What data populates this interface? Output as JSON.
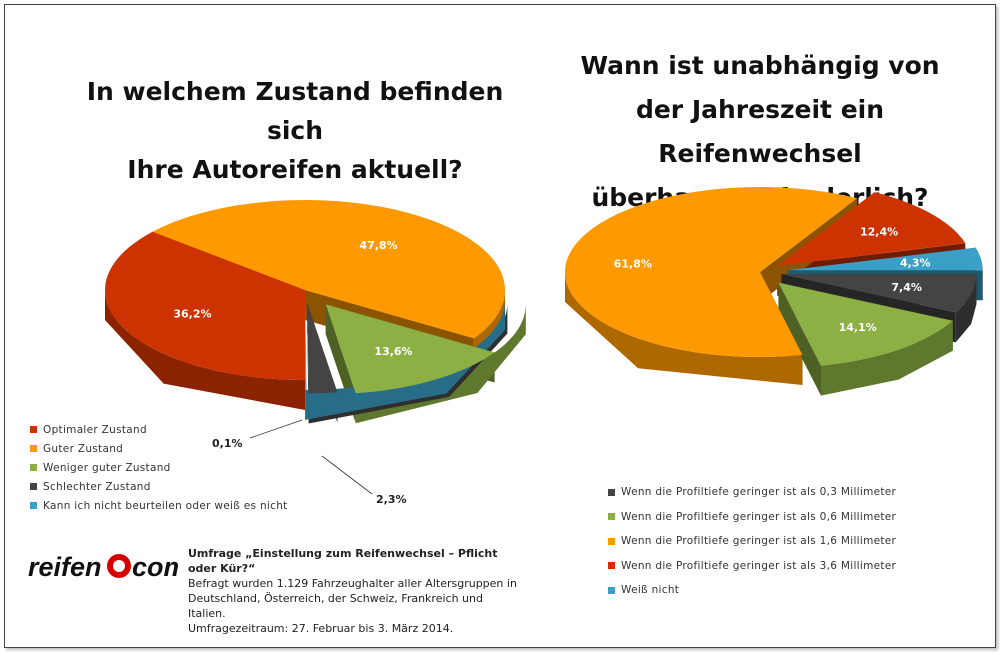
{
  "chart_data": [
    {
      "type": "pie",
      "title": "In welchem Zustand befinden sich\nIhre Autoreifen aktuell?",
      "categories": [
        "Optimaler Zustand",
        "Guter Zustand",
        "Weniger guter Zustand",
        "Schlechter Zustand",
        "Kann ich nicht beurteilen oder weiß es nicht"
      ],
      "values": [
        36.2,
        47.8,
        13.6,
        2.3,
        0.1
      ],
      "data_labels": [
        "36,2%",
        "47,8%",
        "13,6%",
        "2,3%",
        "0,1%"
      ],
      "colors": [
        "#cc3300",
        "#ff9900",
        "#8cb043",
        "#444444",
        "#3aa0c8"
      ],
      "style": "3d-exploded",
      "legend_position": "bottom-left"
    },
    {
      "type": "pie",
      "title": "Wann ist unabhängig von\nder Jahreszeit ein Reifenwechsel\nüberhaupt erforderlich?",
      "categories": [
        "Wenn die Profiltiefe geringer ist als 0,3 Millimeter",
        "Wenn die Profiltiefe geringer ist als 0,6 Millimeter",
        "Wenn die Profiltiefe geringer ist als 1,6 Millimeter",
        "Wenn die Profiltiefe geringer ist als 3,6 Millimeter",
        "Weiß nicht"
      ],
      "values": [
        7.4,
        14.1,
        61.8,
        12.4,
        4.3
      ],
      "data_labels": [
        "7,4%",
        "14,1%",
        "61,8%",
        "12,4%",
        "4,3%"
      ],
      "colors": [
        "#444444",
        "#8cb043",
        "#ff9900",
        "#cc3300",
        "#3aa0c8"
      ],
      "style": "3d-exploded",
      "legend_position": "bottom-right"
    }
  ],
  "logo": {
    "text_left": "reifen",
    "text_right": "com"
  },
  "survey": {
    "heading": "Umfrage „Einstellung zum Reifenwechsel – Pflicht oder Kür?“",
    "lines": [
      "Befragt wurden 1.129 Fahrzeughalter aller Altersgruppen in",
      "Deutschland, Österreich, der Schweiz, Frankreich und Italien.",
      "Umfragezeitraum: 27. Februar bis 3. März 2014."
    ]
  }
}
